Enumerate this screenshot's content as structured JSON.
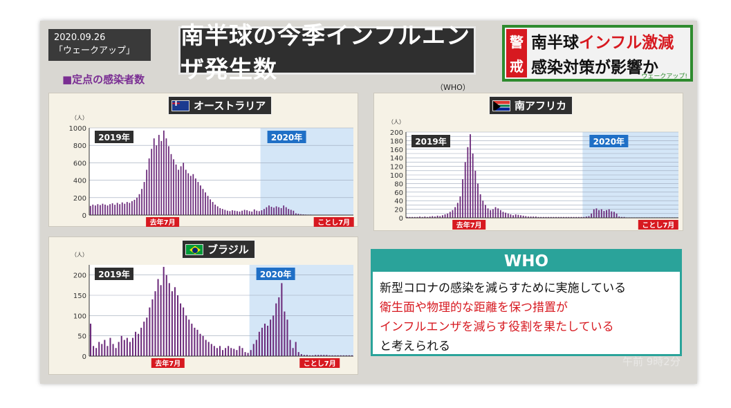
{
  "header": {
    "date": "2020.09.26",
    "program": "「ウェークアップ」",
    "title": "南半球の今季インフルエンザ発生数",
    "subtitle": "■定点の感染者数",
    "source": "（WHO）"
  },
  "headline": {
    "badge_top": "警",
    "badge_bottom": "戒",
    "line1_black": "南半球",
    "line1_red": "インフル激減",
    "line2": "感染対策が影響か",
    "tag": "ウェークアップ!"
  },
  "who": {
    "heading": "WHO",
    "line1": "新型コロナの感染を減らすために実施している",
    "line2": "衛生面や物理的な距離を保つ措置が",
    "line3": "インフルエンザを減らす役割を果たしている",
    "line4": "と考えられる"
  },
  "clock": "午前 9時2分",
  "colors": {
    "bar": "#6b2a7a",
    "shade2020": "#d4e6f7",
    "red": "#d71920",
    "who_teal": "#2aa39a"
  },
  "chart_data": [
    {
      "type": "bar",
      "title": "オーストラリア",
      "unit": "（人）",
      "ylim": [
        0,
        1000
      ],
      "yticks": [
        0,
        200,
        400,
        600,
        800,
        1000
      ],
      "period_labels": [
        "2019年",
        "2020年"
      ],
      "marker_labels": [
        "去年7月",
        "ことし7月"
      ],
      "split_index": 70,
      "marker_indices": [
        30,
        100
      ],
      "values": [
        105,
        120,
        110,
        125,
        115,
        130,
        120,
        110,
        125,
        135,
        118,
        140,
        125,
        145,
        130,
        150,
        140,
        160,
        175,
        200,
        240,
        300,
        380,
        520,
        650,
        760,
        880,
        800,
        920,
        850,
        970,
        880,
        790,
        700,
        640,
        580,
        520,
        560,
        600,
        520,
        480,
        450,
        470,
        420,
        380,
        340,
        300,
        260,
        220,
        180,
        150,
        120,
        100,
        80,
        70,
        60,
        50,
        45,
        55,
        50,
        45,
        40,
        50,
        60,
        55,
        45,
        40,
        65,
        50,
        45,
        55,
        70,
        90,
        110,
        95,
        85,
        100,
        90,
        80,
        110,
        90,
        70,
        60,
        50,
        20,
        15,
        10,
        8,
        6,
        5,
        5,
        4,
        4,
        3,
        3,
        3,
        3,
        2,
        2,
        2,
        2,
        2,
        2,
        2,
        2,
        2,
        2,
        2
      ]
    },
    {
      "type": "bar",
      "title": "南アフリカ",
      "unit": "（人）",
      "ylim": [
        0,
        200
      ],
      "yticks": [
        0,
        10,
        20,
        30,
        40,
        50,
        60,
        70,
        80,
        90,
        100,
        110,
        120,
        130,
        140,
        150,
        160,
        170,
        180,
        190,
        200
      ],
      "period_labels": [
        "2019年",
        "2020年"
      ],
      "marker_labels": [
        "去年7月",
        "ことし7月"
      ],
      "split_index": 70,
      "marker_indices": [
        25,
        100
      ],
      "values": [
        2,
        2,
        2,
        2,
        2,
        3,
        2,
        3,
        2,
        3,
        4,
        3,
        5,
        4,
        6,
        8,
        10,
        14,
        18,
        25,
        35,
        50,
        90,
        130,
        165,
        195,
        150,
        110,
        80,
        55,
        40,
        30,
        22,
        18,
        20,
        25,
        22,
        18,
        14,
        12,
        10,
        8,
        6,
        8,
        7,
        6,
        5,
        4,
        3,
        3,
        3,
        3,
        2,
        2,
        2,
        2,
        2,
        2,
        2,
        2,
        2,
        2,
        2,
        2,
        2,
        2,
        2,
        2,
        2,
        2,
        2,
        3,
        4,
        10,
        20,
        22,
        18,
        20,
        16,
        18,
        20,
        15,
        14,
        10,
        3,
        2,
        2,
        1,
        1,
        1,
        1,
        1,
        1,
        1,
        1,
        1,
        1,
        1,
        1,
        1,
        1,
        1,
        1,
        1,
        1,
        1,
        1,
        1
      ]
    },
    {
      "type": "bar",
      "title": "ブラジル",
      "unit": "（人）",
      "ylim": [
        0,
        225
      ],
      "yticks": [
        0,
        50,
        100,
        150,
        200
      ],
      "period_labels": [
        "2019年",
        "2020年"
      ],
      "marker_labels": [
        "去年7月",
        "ことし7月"
      ],
      "split_index": 57,
      "marker_indices": [
        28,
        82
      ],
      "values": [
        80,
        25,
        20,
        35,
        30,
        40,
        25,
        45,
        30,
        20,
        35,
        50,
        40,
        45,
        35,
        45,
        60,
        55,
        70,
        85,
        95,
        120,
        140,
        160,
        190,
        175,
        220,
        200,
        180,
        160,
        170,
        150,
        130,
        120,
        100,
        90,
        80,
        70,
        65,
        55,
        50,
        40,
        35,
        30,
        25,
        20,
        25,
        15,
        20,
        25,
        20,
        18,
        15,
        25,
        20,
        10,
        8,
        15,
        30,
        40,
        60,
        70,
        80,
        75,
        90,
        100,
        130,
        145,
        180,
        110,
        90,
        40,
        20,
        35,
        10,
        5,
        3,
        3,
        2,
        2,
        3,
        3,
        3,
        3,
        3,
        2,
        2,
        2,
        2,
        2,
        2,
        2,
        2,
        2
      ]
    }
  ]
}
